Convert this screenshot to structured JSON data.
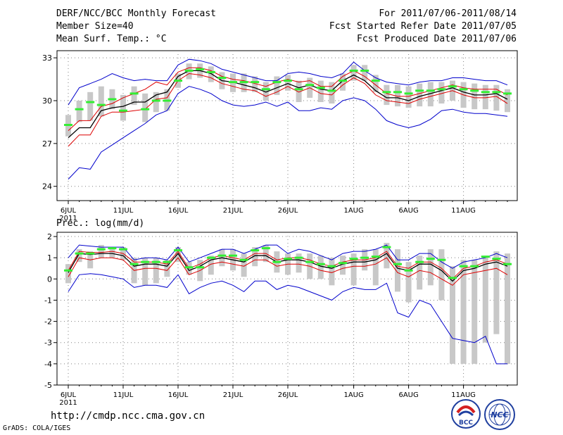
{
  "header": {
    "title": "DERF/NCC/BCC Monthly Forecast",
    "member_size": "Member Size=40",
    "variable1": "Mean Surf. Temp.: °C",
    "period": "For 2011/07/06-2011/08/14",
    "started": "Fcst Started Refer Date 2011/07/05",
    "produced": "Fcst Produced Date 2011/07/06"
  },
  "footer": {
    "url": "http://cmdp.ncc.cma.gov.cn",
    "credit": "GrADS: COLA/IGES",
    "logo_bcc": "BCC",
    "logo_ncc": "NCC"
  },
  "colors": {
    "envelope": "#0000cc",
    "inner": "#dd0000",
    "mean": "#000000",
    "box": "#c8c8c8",
    "median": "#33ee33",
    "grid": "#808080"
  },
  "chart_data": [
    {
      "type": "line",
      "title": "Mean Surf. Temp.: °C",
      "x_tick_labels": [
        "6JUL",
        "11JUL",
        "16JUL",
        "21JUL",
        "26JUL",
        "1AUG",
        "6AUG",
        "11AUG"
      ],
      "x_tick_days": [
        0,
        5,
        10,
        15,
        20,
        26,
        31,
        36
      ],
      "year_label": "2011",
      "ylim": [
        23,
        33.5
      ],
      "y_ticks": [
        24,
        27,
        30,
        33
      ],
      "series": [
        {
          "name": "max",
          "values": [
            29.7,
            30.9,
            31.2,
            31.5,
            31.9,
            31.6,
            31.4,
            31.5,
            31.4,
            31.4,
            32.5,
            32.9,
            32.8,
            32.6,
            32.2,
            32.0,
            31.8,
            31.6,
            31.4,
            31.4,
            31.9,
            32.0,
            31.9,
            31.7,
            31.6,
            31.9,
            32.7,
            32.1,
            31.6,
            31.3,
            31.2,
            31.1,
            31.3,
            31.4,
            31.4,
            31.6,
            31.6,
            31.5,
            31.4,
            31.4,
            31.1
          ]
        },
        {
          "name": "upper",
          "values": [
            27.9,
            28.6,
            28.6,
            29.6,
            29.8,
            30.2,
            30.5,
            30.8,
            31.3,
            31.1,
            32.0,
            32.3,
            32.3,
            32.1,
            31.7,
            31.5,
            31.4,
            31.2,
            31.0,
            31.3,
            31.5,
            31.3,
            31.4,
            31.0,
            31.0,
            31.7,
            32.1,
            31.7,
            31.1,
            30.5,
            30.3,
            30.3,
            30.5,
            30.7,
            30.9,
            31.1,
            30.9,
            30.8,
            30.8,
            30.8,
            30.4
          ]
        },
        {
          "name": "mean",
          "values": [
            27.4,
            28.1,
            28.1,
            29.3,
            29.5,
            29.6,
            29.9,
            29.9,
            30.4,
            30.6,
            31.7,
            32.1,
            32.1,
            31.9,
            31.4,
            31.3,
            31.1,
            30.9,
            30.6,
            30.9,
            31.2,
            30.9,
            31.1,
            30.8,
            30.7,
            31.4,
            31.8,
            31.4,
            30.7,
            30.2,
            30.2,
            30.0,
            30.3,
            30.5,
            30.7,
            30.9,
            30.6,
            30.4,
            30.4,
            30.5,
            30.1
          ]
        },
        {
          "name": "lower",
          "values": [
            26.8,
            27.6,
            27.6,
            28.9,
            29.2,
            29.2,
            29.3,
            29.4,
            30.1,
            30.2,
            31.4,
            31.9,
            31.8,
            31.6,
            31.2,
            31.0,
            30.8,
            30.7,
            30.3,
            30.6,
            31.0,
            30.6,
            30.9,
            30.5,
            30.4,
            31.1,
            31.6,
            31.2,
            30.4,
            30.0,
            29.9,
            29.8,
            30.1,
            30.3,
            30.5,
            30.7,
            30.4,
            30.2,
            30.2,
            30.3,
            29.8
          ]
        },
        {
          "name": "min",
          "values": [
            24.5,
            25.3,
            25.2,
            26.4,
            26.9,
            27.4,
            27.9,
            28.4,
            29.0,
            29.3,
            30.5,
            31.0,
            30.8,
            30.5,
            30.0,
            29.7,
            29.6,
            29.7,
            29.9,
            29.6,
            29.9,
            29.3,
            29.3,
            29.5,
            29.4,
            30.0,
            30.2,
            30.0,
            29.4,
            28.6,
            28.3,
            28.1,
            28.3,
            28.7,
            29.3,
            29.4,
            29.2,
            29.1,
            29.1,
            29.0,
            28.9
          ]
        }
      ],
      "boxes": {
        "median": [
          28.3,
          29.4,
          29.9,
          29.7,
          30.1,
          29.3,
          30.5,
          29.4,
          30.0,
          30.0,
          31.4,
          32.1,
          32.2,
          32.0,
          31.6,
          31.3,
          31.3,
          31.3,
          30.8,
          31.3,
          31.4,
          30.8,
          31.1,
          30.9,
          30.7,
          31.4,
          32.1,
          32.1,
          31.4,
          30.6,
          30.6,
          30.5,
          30.7,
          30.7,
          30.8,
          31.0,
          30.8,
          30.7,
          30.6,
          30.6,
          30.5
        ],
        "low": [
          27.5,
          28.5,
          28.6,
          28.9,
          29.4,
          28.6,
          29.7,
          28.5,
          29.2,
          29.3,
          30.9,
          31.5,
          31.6,
          31.3,
          30.8,
          30.6,
          30.6,
          30.6,
          30.0,
          30.4,
          30.7,
          29.9,
          30.2,
          29.9,
          29.8,
          30.7,
          31.4,
          31.4,
          30.6,
          29.7,
          29.6,
          29.5,
          29.6,
          29.6,
          29.8,
          30.0,
          29.5,
          29.4,
          29.4,
          29.3,
          29.2
        ],
        "high": [
          29.0,
          30.0,
          30.6,
          31.0,
          30.8,
          30.4,
          31.0,
          30.5,
          30.6,
          30.8,
          31.9,
          32.6,
          32.6,
          32.4,
          32.0,
          31.9,
          31.9,
          31.7,
          31.3,
          31.7,
          31.8,
          31.4,
          31.6,
          31.4,
          31.3,
          31.9,
          32.5,
          32.5,
          31.8,
          31.1,
          31.1,
          31.0,
          31.2,
          31.3,
          31.3,
          31.4,
          31.3,
          31.2,
          31.1,
          31.1,
          30.8
        ]
      }
    },
    {
      "type": "line",
      "title": "Prec.: log(mm/d)",
      "x_tick_labels": [
        "6JUL",
        "11JUL",
        "16JUL",
        "21JUL",
        "26JUL",
        "1AUG",
        "6AUG",
        "11AUG"
      ],
      "x_tick_days": [
        0,
        5,
        10,
        15,
        20,
        26,
        31,
        36
      ],
      "year_label": "2011",
      "ylim": [
        -5,
        2.2
      ],
      "y_ticks": [
        -5,
        -4,
        -3,
        -2,
        -1,
        0,
        1,
        2
      ],
      "series": [
        {
          "name": "max",
          "values": [
            1.0,
            1.6,
            1.55,
            1.5,
            1.5,
            1.5,
            0.9,
            1.0,
            1.0,
            0.9,
            1.5,
            0.8,
            1.0,
            1.2,
            1.4,
            1.4,
            1.2,
            1.4,
            1.6,
            1.6,
            1.2,
            1.4,
            1.3,
            1.1,
            0.9,
            1.2,
            1.3,
            1.3,
            1.4,
            1.6,
            0.9,
            0.9,
            1.2,
            1.2,
            0.8,
            0.5,
            0.8,
            0.9,
            1.0,
            1.2,
            1.0
          ]
        },
        {
          "name": "upper",
          "values": [
            0.4,
            1.3,
            1.25,
            1.25,
            1.3,
            1.2,
            0.8,
            0.8,
            0.8,
            0.7,
            1.3,
            0.5,
            0.7,
            1.0,
            1.1,
            1.0,
            0.9,
            1.2,
            1.2,
            0.9,
            1.0,
            1.0,
            0.9,
            0.7,
            0.6,
            0.8,
            0.9,
            0.9,
            1.0,
            1.3,
            0.6,
            0.5,
            0.8,
            0.8,
            0.5,
            0.0,
            0.5,
            0.6,
            0.8,
            0.9,
            0.7
          ]
        },
        {
          "name": "mean",
          "values": [
            0.3,
            1.2,
            1.15,
            1.2,
            1.2,
            1.1,
            0.6,
            0.7,
            0.7,
            0.6,
            1.2,
            0.4,
            0.6,
            0.9,
            1.0,
            0.9,
            0.8,
            1.1,
            1.1,
            0.8,
            0.9,
            0.9,
            0.8,
            0.6,
            0.5,
            0.7,
            0.8,
            0.8,
            0.9,
            1.2,
            0.5,
            0.4,
            0.7,
            0.7,
            0.4,
            -0.1,
            0.4,
            0.5,
            0.7,
            0.8,
            0.6
          ]
        },
        {
          "name": "lower",
          "values": [
            0.1,
            1.0,
            0.9,
            1.0,
            1.0,
            0.9,
            0.4,
            0.5,
            0.5,
            0.4,
            1.0,
            0.2,
            0.4,
            0.7,
            0.8,
            0.7,
            0.6,
            0.9,
            0.9,
            0.6,
            0.7,
            0.7,
            0.6,
            0.4,
            0.3,
            0.5,
            0.6,
            0.6,
            0.7,
            1.0,
            0.3,
            0.1,
            0.4,
            0.3,
            0.0,
            -0.3,
            0.2,
            0.3,
            0.4,
            0.5,
            0.2
          ]
        },
        {
          "name": "min",
          "values": [
            -0.6,
            0.2,
            0.25,
            0.2,
            0.1,
            0.0,
            -0.4,
            -0.3,
            -0.3,
            -0.4,
            0.2,
            -0.7,
            -0.4,
            -0.2,
            -0.1,
            -0.3,
            -0.6,
            -0.1,
            -0.1,
            -0.5,
            -0.3,
            -0.4,
            -0.6,
            -0.8,
            -1.0,
            -0.6,
            -0.4,
            -0.5,
            -0.5,
            -0.2,
            -1.6,
            -1.8,
            -1.0,
            -1.2,
            -2.0,
            -2.8,
            -2.9,
            -3.0,
            -2.7,
            -4.0,
            -4.0
          ]
        }
      ],
      "boxes": {
        "median": [
          0.4,
          1.2,
          1.2,
          1.4,
          1.45,
          1.4,
          0.7,
          0.8,
          0.8,
          0.8,
          1.35,
          0.55,
          0.55,
          1.0,
          1.1,
          1.1,
          0.9,
          1.35,
          1.45,
          0.8,
          0.95,
          1.0,
          0.8,
          0.7,
          0.6,
          0.75,
          0.95,
          1.0,
          1.05,
          1.5,
          0.7,
          0.4,
          0.8,
          0.95,
          0.9,
          0.05,
          0.6,
          0.6,
          1.05,
          0.95,
          0.7
        ],
        "low": [
          -0.2,
          0.8,
          0.5,
          1.0,
          1.0,
          0.9,
          -0.2,
          -0.3,
          -0.2,
          0.1,
          0.8,
          0.2,
          -0.1,
          0.2,
          0.6,
          0.4,
          0.1,
          0.6,
          0.8,
          0.3,
          0.2,
          0.3,
          0.0,
          0.0,
          -0.3,
          0.2,
          -0.3,
          0.4,
          -0.3,
          0.5,
          -0.6,
          -1.1,
          -0.5,
          -0.3,
          -1.0,
          -4.0,
          -4.0,
          -4.0,
          -3.0,
          -2.6,
          -4.0
        ],
        "high": [
          0.7,
          1.4,
          1.3,
          1.6,
          1.5,
          1.5,
          1.0,
          1.0,
          1.0,
          0.9,
          1.5,
          0.8,
          0.9,
          1.1,
          1.4,
          1.4,
          1.2,
          1.5,
          1.6,
          1.3,
          1.2,
          1.2,
          1.2,
          1.1,
          1.0,
          1.1,
          1.2,
          1.4,
          1.4,
          1.7,
          1.4,
          0.8,
          1.1,
          1.4,
          1.4,
          0.6,
          0.9,
          0.9,
          1.1,
          1.3,
          1.2
        ]
      }
    }
  ]
}
